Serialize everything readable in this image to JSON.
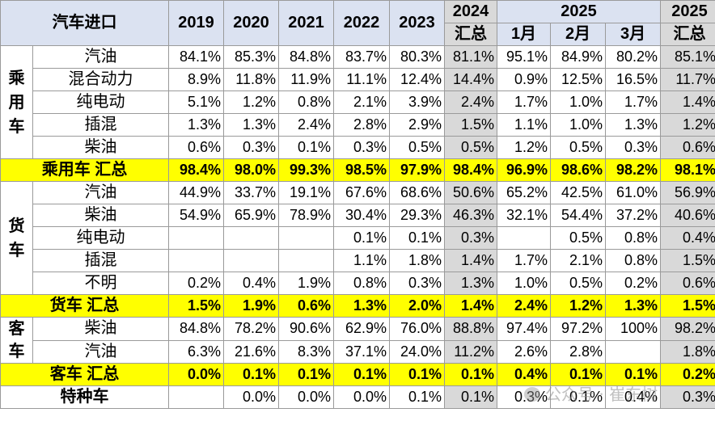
{
  "header": {
    "title": "汽车进口",
    "years": [
      "2019",
      "2020",
      "2021",
      "2022",
      "2023"
    ],
    "col2024_top": "2024",
    "col2024_bottom": "汇总",
    "col2025": "2025",
    "months": [
      "1月",
      "2月",
      "3月"
    ],
    "col2025sum_top": "2025",
    "col2025sum_bottom": "汇总"
  },
  "passenger": {
    "category": "乘用车",
    "rows": [
      {
        "label": "汽油",
        "values": [
          "84.1%",
          "85.3%",
          "84.8%",
          "83.7%",
          "80.3%",
          "81.1%",
          "95.1%",
          "84.9%",
          "80.2%",
          "85.1%"
        ]
      },
      {
        "label": "混合动力",
        "values": [
          "8.9%",
          "11.8%",
          "11.9%",
          "11.1%",
          "12.4%",
          "14.4%",
          "0.9%",
          "12.5%",
          "16.5%",
          "11.7%"
        ]
      },
      {
        "label": "纯电动",
        "values": [
          "5.1%",
          "1.2%",
          "0.8%",
          "2.1%",
          "3.9%",
          "2.4%",
          "1.7%",
          "1.0%",
          "1.7%",
          "1.4%"
        ]
      },
      {
        "label": "插混",
        "values": [
          "1.3%",
          "1.3%",
          "2.4%",
          "2.8%",
          "2.9%",
          "1.5%",
          "1.1%",
          "1.0%",
          "1.3%",
          "1.2%"
        ]
      },
      {
        "label": "柴油",
        "values": [
          "0.6%",
          "0.3%",
          "0.1%",
          "0.3%",
          "0.5%",
          "0.5%",
          "1.2%",
          "0.5%",
          "0.3%",
          "0.6%"
        ]
      }
    ],
    "total": {
      "label": "乘用车 汇总",
      "values": [
        "98.4%",
        "98.0%",
        "99.3%",
        "98.5%",
        "97.9%",
        "98.4%",
        "96.9%",
        "98.6%",
        "98.2%",
        "98.1%"
      ]
    }
  },
  "truck": {
    "category": "货车",
    "rows": [
      {
        "label": "汽油",
        "values": [
          "44.9%",
          "33.7%",
          "19.1%",
          "67.6%",
          "68.6%",
          "50.6%",
          "65.2%",
          "42.5%",
          "61.0%",
          "56.9%"
        ]
      },
      {
        "label": "柴油",
        "values": [
          "54.9%",
          "65.9%",
          "78.9%",
          "30.4%",
          "29.3%",
          "46.3%",
          "32.1%",
          "54.4%",
          "37.2%",
          "40.6%"
        ]
      },
      {
        "label": "纯电动",
        "values": [
          "",
          "",
          "",
          "0.1%",
          "0.1%",
          "0.3%",
          "",
          "0.5%",
          "0.8%",
          "0.4%"
        ]
      },
      {
        "label": "插混",
        "values": [
          "",
          "",
          "",
          "1.1%",
          "1.8%",
          "1.4%",
          "1.7%",
          "2.1%",
          "0.8%",
          "1.5%"
        ]
      },
      {
        "label": "不明",
        "values": [
          "0.2%",
          "0.4%",
          "1.9%",
          "0.8%",
          "0.3%",
          "1.3%",
          "1.0%",
          "0.5%",
          "0.2%",
          "0.6%"
        ]
      }
    ],
    "total": {
      "label": "货车 汇总",
      "values": [
        "1.5%",
        "1.9%",
        "0.6%",
        "1.3%",
        "2.0%",
        "1.4%",
        "2.4%",
        "1.2%",
        "1.3%",
        "1.5%"
      ]
    }
  },
  "bus": {
    "category": "客车",
    "rows": [
      {
        "label": "柴油",
        "values": [
          "84.8%",
          "78.2%",
          "90.6%",
          "62.9%",
          "76.0%",
          "88.8%",
          "97.4%",
          "97.2%",
          "100%",
          "98.2%"
        ]
      },
      {
        "label": "汽油",
        "values": [
          "6.3%",
          "21.6%",
          "8.3%",
          "37.1%",
          "24.0%",
          "11.2%",
          "2.6%",
          "2.8%",
          "",
          "1.8%"
        ]
      }
    ],
    "total": {
      "label": "客车 汇总",
      "values": [
        "0.0%",
        "0.1%",
        "0.1%",
        "0.1%",
        "0.1%",
        "0.1%",
        "0.4%",
        "0.1%",
        "0.1%",
        "0.2%"
      ]
    }
  },
  "special": {
    "label": "特种车",
    "values": [
      "",
      "0.0%",
      "0.0%",
      "0.0%",
      "0.1%",
      "0.1%",
      "0.3%",
      "0.1%",
      "0.4%",
      "0.3%"
    ]
  },
  "watermark": "公众号 · 崔东树",
  "colors": {
    "header_bg": "#dbe2f1",
    "summary_col_bg": "#d9d9d9",
    "total_row_bg": "#ffff00",
    "border": "#9a9a9a"
  }
}
